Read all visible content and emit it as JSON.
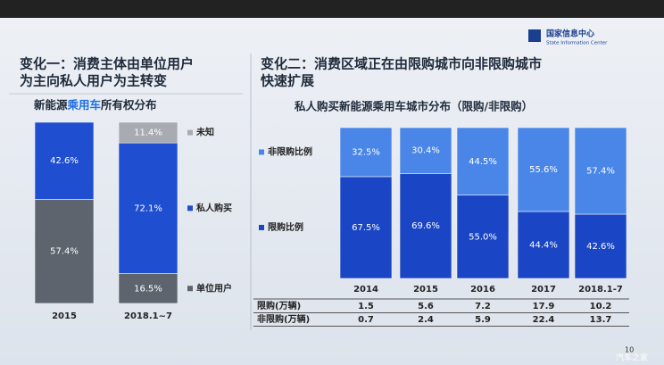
{
  "logo": {
    "name": "国家信息中心",
    "subtitle": "State Information Center"
  },
  "chart_data": [
    {
      "type": "stacked-bar",
      "heading": [
        "变化一：消费主体由单位用户",
        "为主向私人用户为主转变"
      ],
      "title": [
        "新能源",
        "乘用车",
        "所有权分布"
      ],
      "categories": [
        "2015",
        "2018.1~7"
      ],
      "legend": "right",
      "series": [
        {
          "name": "单位用户",
          "color": "#5d646e",
          "values": [
            57.4,
            16.5
          ],
          "value_labels": [
            "57.4%",
            "16.5%"
          ]
        },
        {
          "name": "私人购买",
          "color": "#1f4fd0",
          "values": [
            42.6,
            72.1
          ],
          "value_labels": [
            "42.6%",
            "72.1%"
          ]
        },
        {
          "name": "未知",
          "color": "#a8acb2",
          "values": [
            null,
            11.4
          ],
          "value_labels": [
            null,
            "11.4%"
          ]
        }
      ]
    },
    {
      "type": "stacked-bar",
      "heading": [
        "变化二：消费区域正在由限购城市向非限购城市",
        "快速扩展"
      ],
      "title": [
        "私人购买新能源乘用车城市分布（限购/非限购）"
      ],
      "categories": [
        "2014",
        "2015",
        "2016",
        "2017",
        "2018.1-7"
      ],
      "legend": "left",
      "series": [
        {
          "name": "限购比例",
          "color": "#1a45c4",
          "values": [
            67.5,
            69.6,
            55.0,
            44.4,
            42.6
          ],
          "value_labels": [
            "67.5%",
            "69.6%",
            "55.0%",
            "44.4%",
            "42.6%"
          ]
        },
        {
          "name": "非限购比例",
          "color": "#4a86e8",
          "values": [
            32.5,
            30.4,
            44.5,
            55.6,
            57.4
          ],
          "value_labels": [
            "32.5%",
            "30.4%",
            "44.5%",
            "55.6%",
            "57.4%"
          ]
        }
      ]
    }
  ],
  "table": {
    "rows": [
      {
        "label": "限购(万辆)",
        "values": [
          1.5,
          5.6,
          7.2,
          17.9,
          10.2
        ]
      },
      {
        "label": "非限购(万辆)",
        "values": [
          0.7,
          2.4,
          5.9,
          22.4,
          13.7
        ]
      }
    ]
  },
  "page_number": "10",
  "watermark": "汽车之家"
}
